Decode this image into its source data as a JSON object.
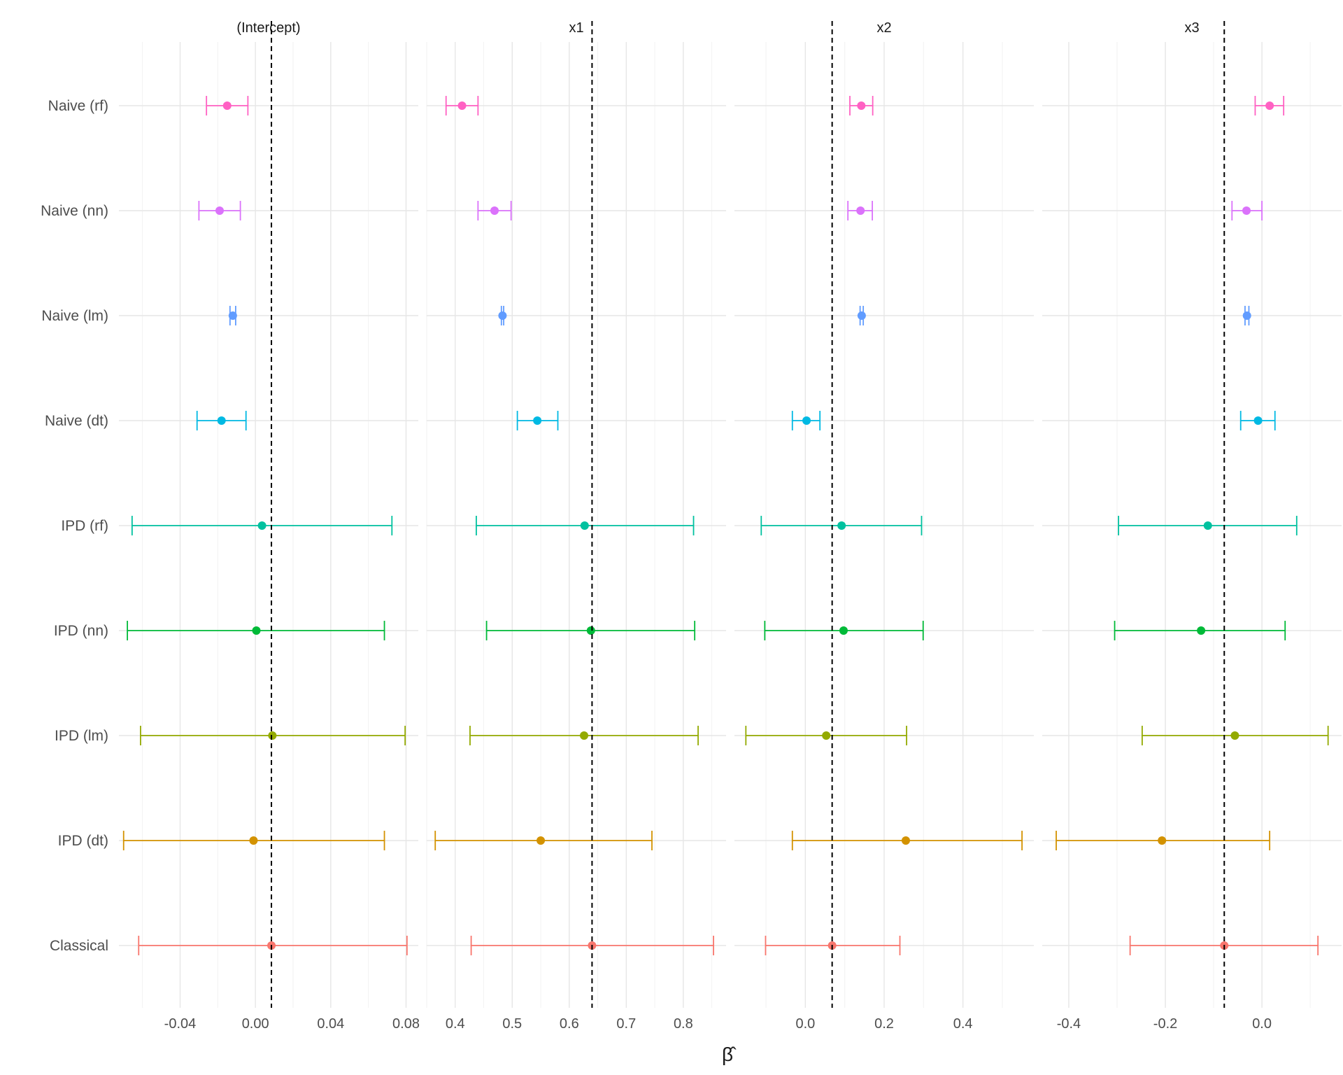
{
  "chart_data": {
    "type": "forest-errorbar-facets",
    "xlabel": "β̂",
    "categories": [
      "Naive (rf)",
      "Naive (nn)",
      "Naive (lm)",
      "Naive (dt)",
      "IPD (rf)",
      "IPD (nn)",
      "IPD (lm)",
      "IPD (dt)",
      "Classical"
    ],
    "colors": {
      "Naive (rf)": "#FF61C3",
      "Naive (nn)": "#DB72FB",
      "Naive (lm)": "#619CFF",
      "Naive (dt)": "#00B9E3",
      "IPD (rf)": "#00C19F",
      "IPD (nn)": "#00BA38",
      "IPD (lm)": "#93AA00",
      "IPD (dt)": "#D39200",
      "Classical": "#F8766D"
    },
    "panels": [
      {
        "title": "(Intercept)",
        "xlim": [
          -0.0725,
          0.0865
        ],
        "ticks": [
          -0.04,
          0.0,
          0.04,
          0.08
        ],
        "tick_labels": [
          "-0.04",
          "0.00",
          "0.04",
          "0.08"
        ],
        "reference": 0.0085,
        "estimates": [
          -0.015,
          -0.019,
          -0.012,
          -0.018,
          0.0035,
          0.0005,
          0.009,
          -0.001,
          0.0085
        ],
        "lower": [
          -0.026,
          -0.03,
          -0.0135,
          -0.031,
          -0.0655,
          -0.068,
          -0.061,
          -0.07,
          -0.062
        ],
        "upper": [
          -0.004,
          -0.008,
          -0.0105,
          -0.005,
          0.0725,
          0.0685,
          0.0795,
          0.0685,
          0.0805
        ]
      },
      {
        "title": "x1",
        "xlim": [
          0.35,
          0.875
        ],
        "ticks": [
          0.4,
          0.5,
          0.6,
          0.7,
          0.8
        ],
        "tick_labels": [
          "0.4",
          "0.5",
          "0.6",
          "0.7",
          "0.8"
        ],
        "reference": 0.64,
        "estimates": [
          0.412,
          0.469,
          0.483,
          0.544,
          0.627,
          0.638,
          0.626,
          0.55,
          0.64
        ],
        "lower": [
          0.384,
          0.44,
          0.481,
          0.509,
          0.437,
          0.455,
          0.426,
          0.365,
          0.428
        ],
        "upper": [
          0.44,
          0.498,
          0.485,
          0.58,
          0.818,
          0.82,
          0.826,
          0.745,
          0.853
        ]
      },
      {
        "title": "x2",
        "xlim": [
          -0.18,
          0.58
        ],
        "ticks": [
          0.0,
          0.2,
          0.4
        ],
        "tick_labels": [
          "0.0",
          "0.2",
          "0.4"
        ],
        "reference": 0.068,
        "estimates": [
          0.142,
          0.14,
          0.143,
          0.003,
          0.092,
          0.097,
          0.053,
          0.255,
          0.068
        ],
        "lower": [
          0.113,
          0.108,
          0.139,
          -0.033,
          -0.112,
          -0.103,
          -0.151,
          -0.033,
          -0.101
        ],
        "upper": [
          0.171,
          0.17,
          0.147,
          0.037,
          0.295,
          0.299,
          0.257,
          0.55,
          0.24
        ]
      },
      {
        "title": "x3",
        "xlim": [
          -0.455,
          0.165
        ],
        "ticks": [
          -0.4,
          -0.2,
          0.0
        ],
        "tick_labels": [
          "-0.4",
          "-0.2",
          "0.0"
        ],
        "reference": -0.078,
        "estimates": [
          0.016,
          -0.032,
          -0.031,
          -0.008,
          -0.112,
          -0.126,
          -0.056,
          -0.207,
          -0.078
        ],
        "lower": [
          -0.014,
          -0.062,
          -0.035,
          -0.044,
          -0.297,
          -0.305,
          -0.248,
          -0.426,
          -0.273
        ],
        "upper": [
          0.045,
          0.0,
          -0.027,
          0.027,
          0.072,
          0.048,
          0.137,
          0.016,
          0.116
        ]
      }
    ]
  }
}
